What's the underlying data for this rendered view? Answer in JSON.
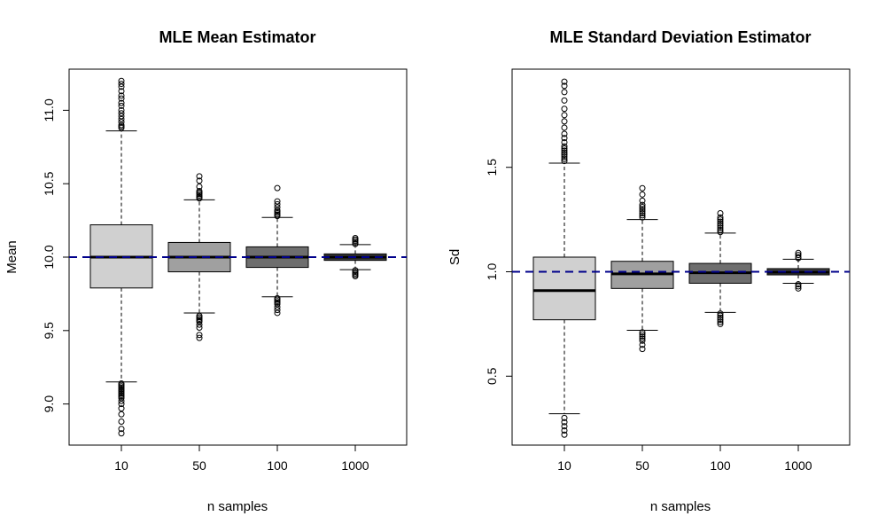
{
  "chart_data": [
    {
      "type": "box",
      "title": "MLE Mean Estimator",
      "xlabel": "n samples",
      "ylabel": "Mean",
      "ylim": [
        8.72,
        11.28
      ],
      "yticks": [
        "9.0",
        "9.5",
        "10.0",
        "10.5",
        "11.0"
      ],
      "reference_line": 10.0,
      "categories": [
        "10",
        "50",
        "100",
        "1000"
      ],
      "fill_colors": [
        "#d0d0d0",
        "#a0a0a0",
        "#6e6e6e",
        "#3e3e3e"
      ],
      "boxes": [
        {
          "category": "10",
          "q1": 9.79,
          "median": 10.0,
          "q3": 10.22,
          "whisker_low": 9.15,
          "whisker_high": 10.86,
          "outliers": [
            8.8,
            8.83,
            8.88,
            8.93,
            8.97,
            9.0,
            9.02,
            9.04,
            9.05,
            9.06,
            9.07,
            9.08,
            9.09,
            9.1,
            9.11,
            9.12,
            9.13,
            9.14,
            10.88,
            10.89,
            10.9,
            10.92,
            10.94,
            10.96,
            10.98,
            11.0,
            11.03,
            11.05,
            11.08,
            11.1,
            11.13,
            11.16,
            11.18,
            11.2
          ]
        },
        {
          "category": "50",
          "q1": 9.9,
          "median": 10.0,
          "q3": 10.1,
          "whisker_low": 9.62,
          "whisker_high": 10.39,
          "outliers": [
            9.45,
            9.47,
            9.52,
            9.54,
            9.56,
            9.57,
            9.58,
            9.59,
            9.6,
            10.4,
            10.41,
            10.42,
            10.43,
            10.44,
            10.45,
            10.48,
            10.52,
            10.55
          ]
        },
        {
          "category": "100",
          "q1": 9.93,
          "median": 10.0,
          "q3": 10.07,
          "whisker_low": 9.73,
          "whisker_high": 10.27,
          "outliers": [
            9.62,
            9.64,
            9.66,
            9.68,
            9.69,
            9.7,
            9.71,
            9.72,
            10.28,
            10.29,
            10.3,
            10.31,
            10.32,
            10.34,
            10.36,
            10.38,
            10.47
          ]
        },
        {
          "category": "1000",
          "q1": 9.978,
          "median": 10.0,
          "q3": 10.022,
          "whisker_low": 9.915,
          "whisker_high": 10.085,
          "outliers": [
            9.87,
            9.88,
            9.89,
            9.9,
            9.91,
            10.09,
            10.1,
            10.11,
            10.12,
            10.13
          ]
        }
      ]
    },
    {
      "type": "box",
      "title": "MLE Standard Deviation Estimator",
      "xlabel": "n samples",
      "ylabel": "Sd",
      "ylim": [
        0.17,
        1.97
      ],
      "yticks": [
        "0.5",
        "1.0",
        "1.5"
      ],
      "reference_line": 1.0,
      "categories": [
        "10",
        "50",
        "100",
        "1000"
      ],
      "fill_colors": [
        "#d0d0d0",
        "#a0a0a0",
        "#6e6e6e",
        "#3e3e3e"
      ],
      "boxes": [
        {
          "category": "10",
          "q1": 0.77,
          "median": 0.91,
          "q3": 1.07,
          "whisker_low": 0.32,
          "whisker_high": 1.52,
          "outliers": [
            0.22,
            0.24,
            0.26,
            0.28,
            0.3,
            1.53,
            1.54,
            1.55,
            1.56,
            1.57,
            1.58,
            1.59,
            1.6,
            1.62,
            1.64,
            1.66,
            1.69,
            1.72,
            1.75,
            1.78,
            1.82,
            1.86,
            1.89,
            1.91
          ]
        },
        {
          "category": "50",
          "q1": 0.92,
          "median": 0.99,
          "q3": 1.05,
          "whisker_low": 0.72,
          "whisker_high": 1.25,
          "outliers": [
            0.63,
            0.65,
            0.67,
            0.68,
            0.69,
            0.7,
            0.71,
            1.26,
            1.27,
            1.28,
            1.29,
            1.3,
            1.31,
            1.32,
            1.34,
            1.37,
            1.4
          ]
        },
        {
          "category": "100",
          "q1": 0.945,
          "median": 0.995,
          "q3": 1.04,
          "whisker_low": 0.805,
          "whisker_high": 1.185,
          "outliers": [
            0.75,
            0.76,
            0.77,
            0.78,
            0.79,
            0.8,
            1.19,
            1.2,
            1.21,
            1.22,
            1.23,
            1.24,
            1.25,
            1.26,
            1.28
          ]
        },
        {
          "category": "1000",
          "q1": 0.985,
          "median": 0.998,
          "q3": 1.015,
          "whisker_low": 0.945,
          "whisker_high": 1.06,
          "outliers": [
            0.92,
            0.93,
            0.94,
            1.065,
            1.07,
            1.08,
            1.09
          ]
        }
      ]
    }
  ],
  "colors": {
    "reference_line": "#00008b",
    "median": "#000000",
    "axis": "#000000"
  }
}
